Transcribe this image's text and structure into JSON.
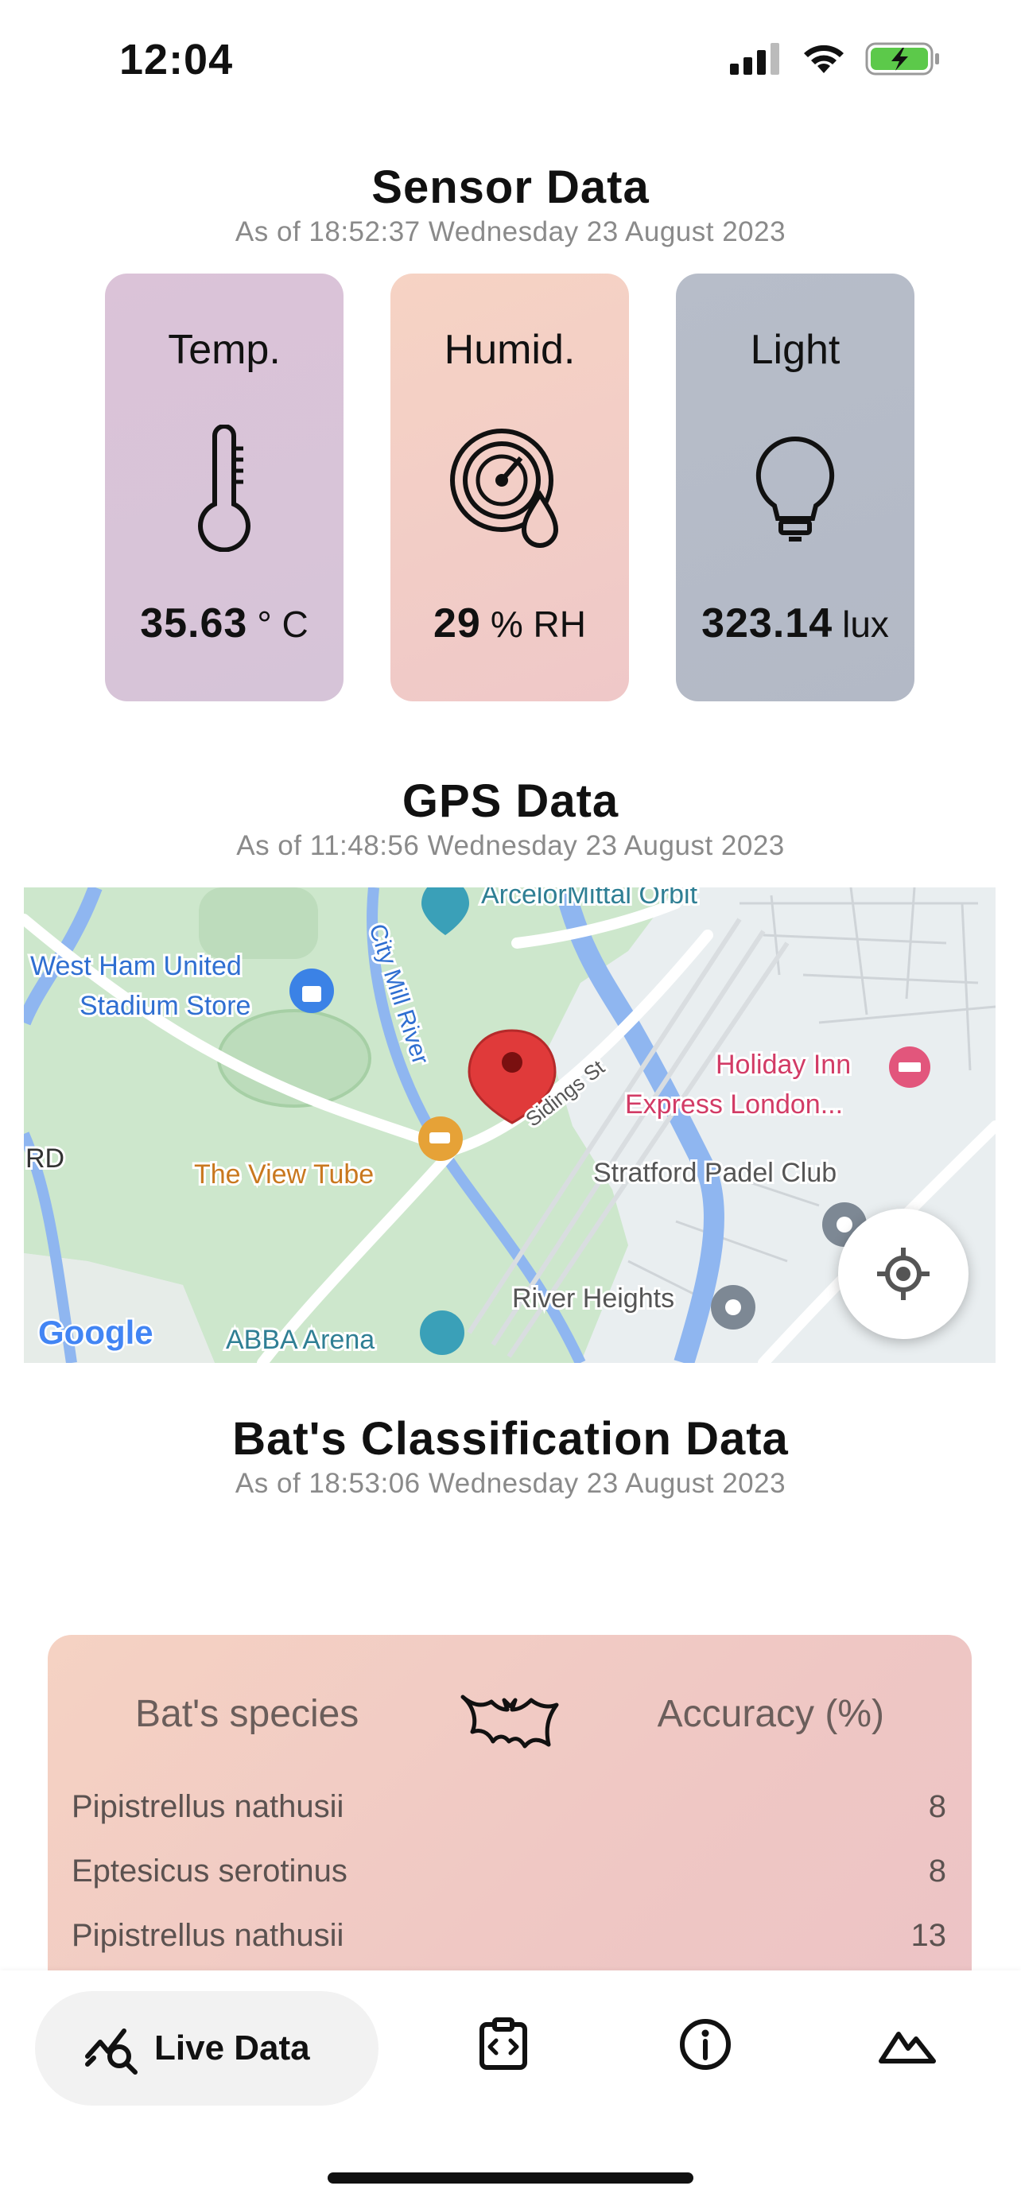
{
  "status_bar": {
    "time": "12:04"
  },
  "sensor": {
    "title": "Sensor Data",
    "timestamp": "As of 18:52:37 Wednesday 23 August 2023",
    "cards": [
      {
        "label": "Temp.",
        "value": "35.63",
        "unit": "° C",
        "icon": "thermometer-icon",
        "color": "#d8c4d6"
      },
      {
        "label": "Humid.",
        "value": "29",
        "unit": "% RH",
        "icon": "humidity-gauge-icon",
        "color": "#f3cfc6"
      },
      {
        "label": "Light",
        "value": "323.14",
        "unit": "lux",
        "icon": "lightbulb-icon",
        "color": "#b6bcc8"
      }
    ]
  },
  "gps": {
    "title": "GPS Data",
    "timestamp": "As of 11:48:56 Wednesday 23 August 2023",
    "map_labels": {
      "arcelor": "ArcelorMittal Orbit",
      "westham1": "West Ham United",
      "westham2": "Stadium Store",
      "citymill": "City Mill River",
      "sidings": "Sidings St",
      "holiday1": "Holiday Inn",
      "holiday2": "Express London...",
      "rd": "RD",
      "viewtube": "The View Tube",
      "padel": "Stratford Padel Club",
      "river_heights": "River Heights",
      "abba": "ABBA Arena",
      "google": "Google"
    }
  },
  "bats": {
    "title": "Bat's Classification Data",
    "timestamp": "As of 18:53:06 Wednesday 23 August 2023",
    "col_species": "Bat's species",
    "col_accuracy": "Accuracy (%)",
    "rows": [
      {
        "species": "Pipistrellus nathusii",
        "accuracy": "8"
      },
      {
        "species": "Eptesicus serotinus",
        "accuracy": "8"
      },
      {
        "species": "Pipistrellus nathusii",
        "accuracy": "13"
      }
    ]
  },
  "nav": {
    "items": [
      {
        "label": "Live Data",
        "icon": "live-data-icon",
        "active": true
      },
      {
        "label": "",
        "icon": "code-clipboard-icon"
      },
      {
        "label": "",
        "icon": "info-icon"
      },
      {
        "label": "",
        "icon": "terrain-icon"
      }
    ]
  }
}
